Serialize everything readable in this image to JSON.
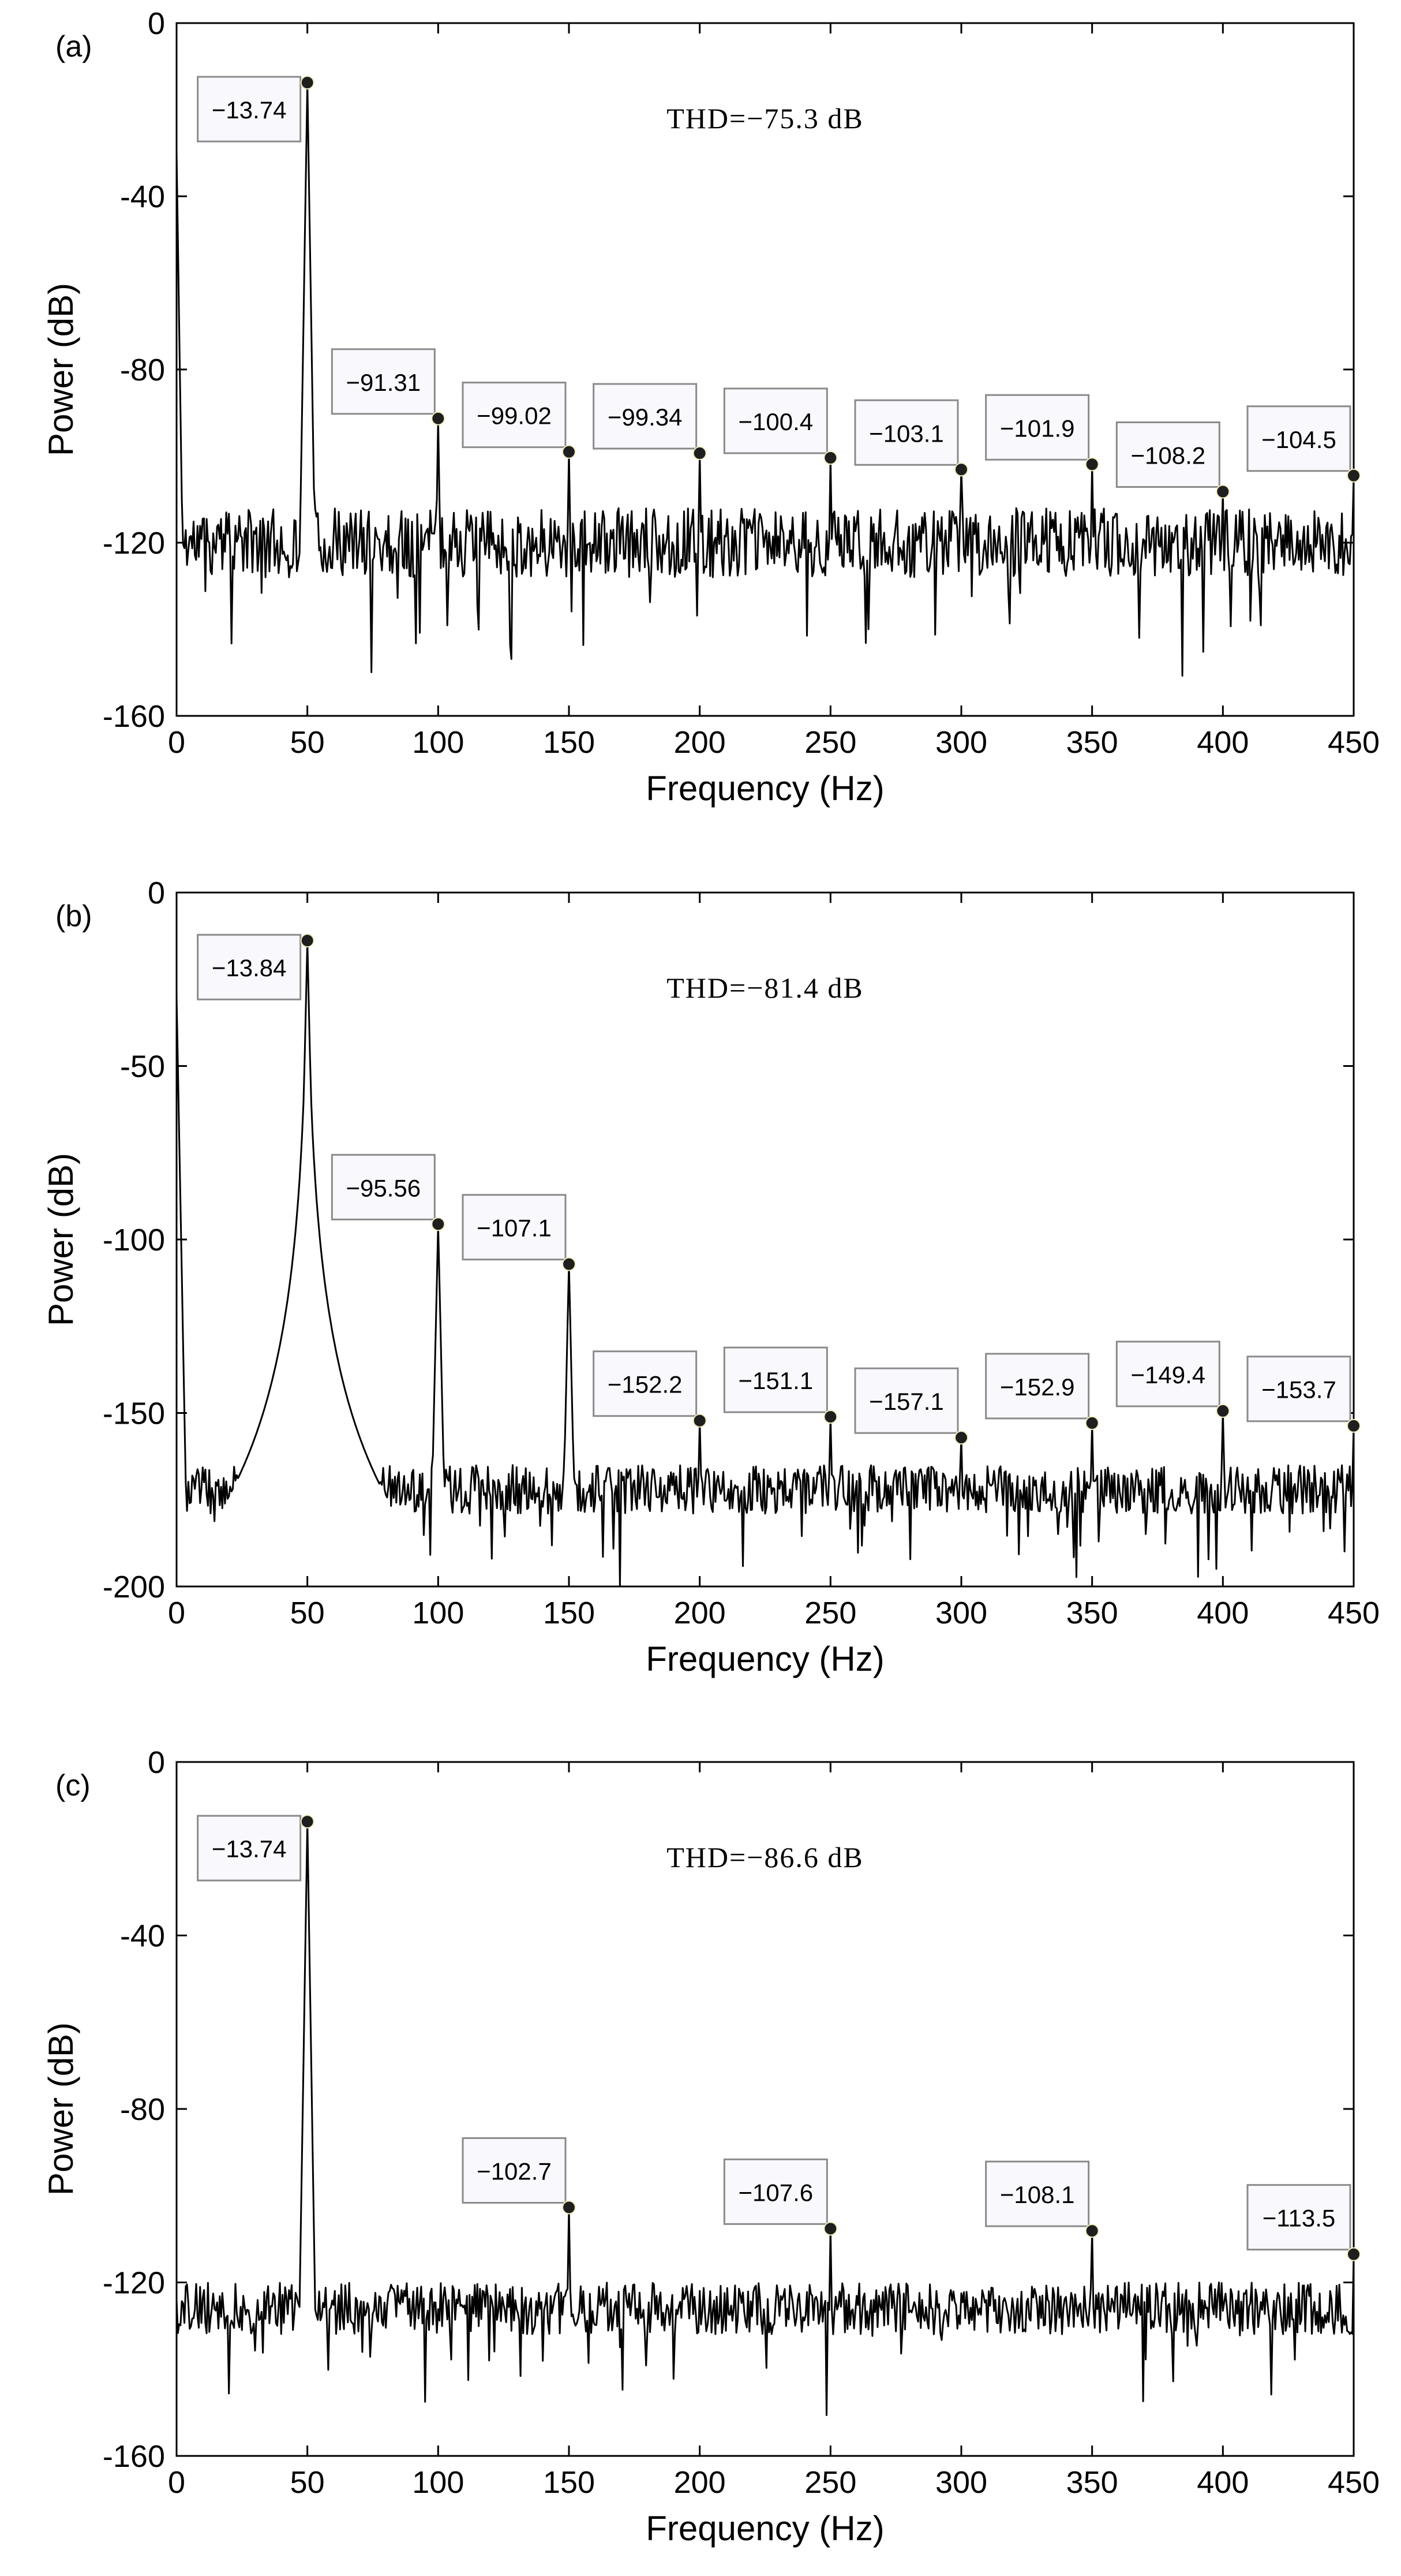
{
  "chart_data": [
    {
      "type": "line",
      "panel_label": "(a)",
      "xlabel": "Frequency (Hz)",
      "ylabel": "Power (dB)",
      "xlim": [
        0,
        450
      ],
      "ylim": [
        -160,
        0
      ],
      "xticks": [
        0,
        50,
        100,
        150,
        200,
        250,
        300,
        350,
        400,
        450
      ],
      "yticks": [
        0,
        -40,
        -80,
        -120,
        -160
      ],
      "xtick_labels": [
        "0",
        "50",
        "100",
        "150",
        "200",
        "250",
        "300",
        "350",
        "400",
        "450"
      ],
      "ytick_labels": [
        "0",
        "-40",
        "-80",
        "-120",
        "-160"
      ],
      "annotation": "THD=−75.3 dB",
      "noise_floor": -120,
      "noise_amp": 8,
      "seed": 11,
      "dc_peak": -30,
      "peak_width": 0.8,
      "peaks": [
        {
          "x": 50,
          "y": -13.74,
          "label": "−13.74"
        },
        {
          "x": 100,
          "y": -91.31,
          "label": "−91.31"
        },
        {
          "x": 150,
          "y": -99.02,
          "label": "−99.02"
        },
        {
          "x": 200,
          "y": -99.34,
          "label": "−99.34"
        },
        {
          "x": 250,
          "y": -100.4,
          "label": "−100.4"
        },
        {
          "x": 300,
          "y": -103.1,
          "label": "−103.1"
        },
        {
          "x": 350,
          "y": -101.9,
          "label": "−101.9"
        },
        {
          "x": 400,
          "y": -108.2,
          "label": "−108.2"
        },
        {
          "x": 450,
          "y": -104.5,
          "label": "−104.5"
        }
      ]
    },
    {
      "type": "line",
      "panel_label": "(b)",
      "xlabel": "Frequency (Hz)",
      "ylabel": "Power (dB)",
      "xlim": [
        0,
        450
      ],
      "ylim": [
        -200,
        0
      ],
      "xticks": [
        0,
        50,
        100,
        150,
        200,
        250,
        300,
        350,
        400,
        450
      ],
      "yticks": [
        0,
        -50,
        -100,
        -150,
        -200
      ],
      "xtick_labels": [
        "0",
        "50",
        "100",
        "150",
        "200",
        "250",
        "300",
        "350",
        "400",
        "450"
      ],
      "ytick_labels": [
        "0",
        "-50",
        "-100",
        "-150",
        "-200"
      ],
      "annotation": "THD=−81.4 dB",
      "noise_floor": -172,
      "noise_amp": 7,
      "seed": 23,
      "dc_peak": -30,
      "peak_width": 0.9,
      "skirt_peak_x": 50,
      "peaks": [
        {
          "x": 50,
          "y": -13.84,
          "label": "−13.84"
        },
        {
          "x": 100,
          "y": -95.56,
          "label": "−95.56"
        },
        {
          "x": 150,
          "y": -107.1,
          "label": "−107.1"
        },
        {
          "x": 200,
          "y": -152.2,
          "label": "−152.2"
        },
        {
          "x": 250,
          "y": -151.1,
          "label": "−151.1"
        },
        {
          "x": 300,
          "y": -157.1,
          "label": "−157.1"
        },
        {
          "x": 350,
          "y": -152.9,
          "label": "−152.9"
        },
        {
          "x": 400,
          "y": -149.4,
          "label": "−149.4"
        },
        {
          "x": 450,
          "y": -153.7,
          "label": "−153.7"
        }
      ]
    },
    {
      "type": "line",
      "panel_label": "(c)",
      "xlabel": "Frequency (Hz)",
      "ylabel": "Power (dB)",
      "xlim": [
        0,
        450
      ],
      "ylim": [
        -160,
        0
      ],
      "xticks": [
        0,
        50,
        100,
        150,
        200,
        250,
        300,
        350,
        400,
        450
      ],
      "yticks": [
        0,
        -40,
        -80,
        -120,
        -160
      ],
      "xtick_labels": [
        "0",
        "50",
        "100",
        "150",
        "200",
        "250",
        "300",
        "350",
        "400",
        "450"
      ],
      "ytick_labels": [
        "0",
        "-40",
        "-80",
        "-120",
        "-160"
      ],
      "annotation": "THD=−86.6 dB",
      "noise_floor": -126,
      "noise_amp": 6,
      "seed": 37,
      "dc_peak": -124,
      "peak_width": 0.8,
      "peaks": [
        {
          "x": 50,
          "y": -13.74,
          "label": "−13.74"
        },
        {
          "x": 150,
          "y": -102.7,
          "label": "−102.7"
        },
        {
          "x": 250,
          "y": -107.6,
          "label": "−107.6"
        },
        {
          "x": 350,
          "y": -108.1,
          "label": "−108.1"
        },
        {
          "x": 450,
          "y": -113.5,
          "label": "−113.5"
        }
      ]
    }
  ]
}
